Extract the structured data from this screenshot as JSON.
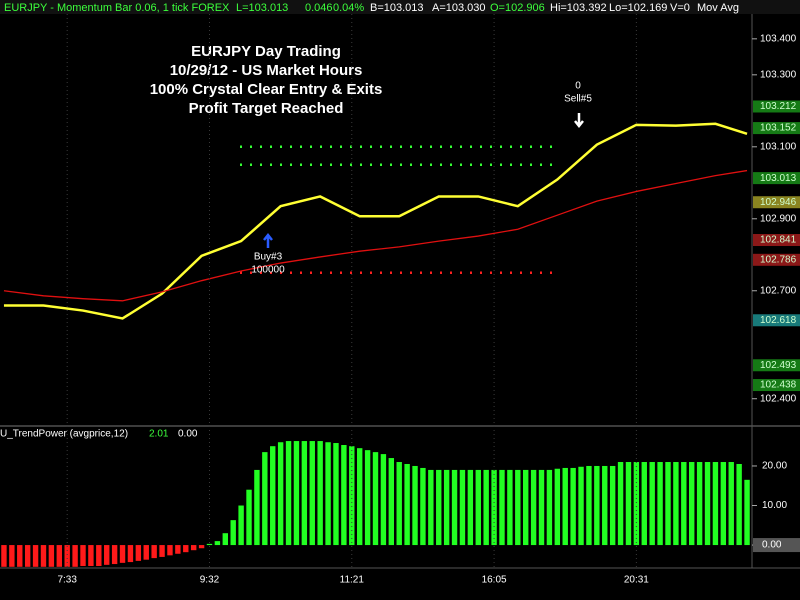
{
  "header": {
    "symbol": "EURJPY - Momentum Bar 0.06, 1 tick  FOREX",
    "last": "L=103.013",
    "change": "0.046",
    "percent": "0.04%",
    "bid": "B=103.013",
    "ask": "A=103.030",
    "open": "O=102.906",
    "high": "Hi=103.392",
    "low": "Lo=102.169",
    "volume": "V=0",
    "study": "Mov Avg"
  },
  "chart_data": [
    {
      "type": "line",
      "title": [
        "EURJPY Day Trading",
        "10/29/12 - US Market Hours",
        "100% Crystal Clear Entry & Exits",
        "Profit Target Reached"
      ],
      "x": [
        0,
        5,
        10,
        15,
        20,
        25,
        30,
        35,
        40,
        45,
        50,
        55,
        60,
        65,
        70,
        75,
        80,
        85,
        90,
        94
      ],
      "xlim": [
        -0.5,
        94.5
      ],
      "series": [
        {
          "color": "#ffff33",
          "values": [
            102.659,
            102.659,
            102.645,
            102.623,
            102.692,
            102.797,
            102.838,
            102.935,
            102.962,
            102.907,
            102.907,
            102.962,
            102.962,
            102.935,
            103.009,
            103.106,
            103.161,
            103.159,
            103.164,
            103.136
          ]
        },
        {
          "color": "#e01010",
          "values": [
            102.7,
            102.686,
            102.678,
            102.672,
            102.697,
            102.728,
            102.755,
            102.777,
            102.794,
            102.81,
            102.822,
            102.838,
            102.852,
            102.871,
            102.91,
            102.949,
            102.976,
            102.998,
            103.02,
            103.034
          ]
        }
      ],
      "levels": [
        {
          "value": 103.1,
          "color": "#33ff33"
        },
        {
          "value": 103.05,
          "color": "#33ff33"
        },
        {
          "value": 102.75,
          "color": "#ff2020"
        }
      ],
      "annotations": [
        {
          "text": "Buy#3",
          "sub": "100000"
        },
        {
          "text": "0",
          "sub": "Sell#5"
        }
      ],
      "ylim": [
        102.327,
        103.469
      ],
      "yticks": [
        {
          "value": 102.4,
          "label": "102.400"
        },
        {
          "value": 102.7,
          "label": "102.700"
        },
        {
          "value": 102.9,
          "label": "102.900"
        },
        {
          "value": 103.1,
          "label": "103.100"
        },
        {
          "value": 103.3,
          "label": "103.300"
        },
        {
          "value": 103.4,
          "label": "103.400"
        }
      ],
      "price_labels": [
        {
          "value": 103.212,
          "label": "103.212",
          "color": "#157a15"
        },
        {
          "value": 103.152,
          "label": "103.152",
          "color": "#157a15"
        },
        {
          "value": 103.013,
          "label": "103.013",
          "color": "#157a15"
        },
        {
          "value": 102.946,
          "label": "102.946",
          "color": "#8a8420"
        },
        {
          "value": 102.841,
          "label": "102.841",
          "color": "#8b1818"
        },
        {
          "value": 102.786,
          "label": "102.786",
          "color": "#8b1818"
        },
        {
          "value": 102.618,
          "label": "102.618",
          "color": "#187a7a"
        },
        {
          "value": 102.493,
          "label": "102.493",
          "color": "#157a15"
        },
        {
          "value": 102.438,
          "label": "102.438",
          "color": "#157a15"
        }
      ]
    },
    {
      "type": "bar",
      "legend": "U_TrendPower (avgprice,12)",
      "legend_values": [
        "2.01",
        "0.00"
      ],
      "categories": [
        null,
        null,
        null,
        null,
        null,
        null,
        null,
        null,
        "7:33",
        null,
        null,
        null,
        null,
        null,
        null,
        null,
        null,
        null,
        null,
        null,
        null,
        null,
        null,
        null,
        null,
        null,
        "9:32",
        null,
        null,
        null,
        null,
        null,
        null,
        null,
        null,
        null,
        null,
        null,
        null,
        null,
        null,
        null,
        null,
        null,
        "11:21",
        null,
        null,
        null,
        null,
        null,
        null,
        null,
        null,
        null,
        null,
        null,
        null,
        null,
        null,
        null,
        null,
        null,
        "16:05",
        null,
        null,
        null,
        null,
        null,
        null,
        null,
        null,
        null,
        null,
        null,
        null,
        null,
        null,
        null,
        null,
        null,
        "20:31",
        null,
        null,
        null,
        null,
        null,
        null,
        null,
        null,
        null,
        null,
        null,
        null,
        null,
        null
      ],
      "values": [
        -5.5,
        -5.5,
        -5.5,
        -5.5,
        -5.5,
        -5.5,
        -5.5,
        -5.5,
        -5.5,
        -5.5,
        -5.3,
        -5.3,
        -5.3,
        -5.0,
        -4.8,
        -4.5,
        -4.3,
        -4.0,
        -3.7,
        -3.3,
        -3.0,
        -2.6,
        -2.2,
        -1.8,
        -1.3,
        -0.8,
        0.3,
        1.0,
        3.0,
        6.3,
        10.0,
        14.0,
        19.0,
        23.5,
        25.0,
        26.0,
        26.3,
        26.3,
        26.3,
        26.3,
        26.3,
        26.0,
        25.8,
        25.3,
        25.0,
        24.5,
        24.0,
        23.5,
        23.0,
        22.0,
        21.0,
        20.5,
        20.0,
        19.5,
        19.0,
        19.0,
        19.0,
        19.0,
        19.0,
        19.0,
        19.0,
        19.0,
        19.0,
        19.0,
        19.0,
        19.0,
        19.0,
        19.0,
        19.0,
        19.0,
        19.3,
        19.5,
        19.5,
        19.8,
        20.0,
        20.0,
        20.0,
        20.0,
        21.0,
        21.0,
        21.0,
        21.0,
        21.0,
        21.0,
        21.0,
        21.0,
        21.0,
        21.0,
        21.0,
        21.0,
        21.0,
        21.0,
        21.0,
        20.5,
        16.5
      ],
      "pos_color": "#22ff22",
      "neg_color": "#ff1a1a",
      "ylim": [
        -5.8,
        29.6
      ],
      "yticks": [
        {
          "value": 0,
          "label": "0.00"
        },
        {
          "value": 10,
          "label": "10.00"
        },
        {
          "value": 20,
          "label": "20.00"
        }
      ]
    }
  ]
}
